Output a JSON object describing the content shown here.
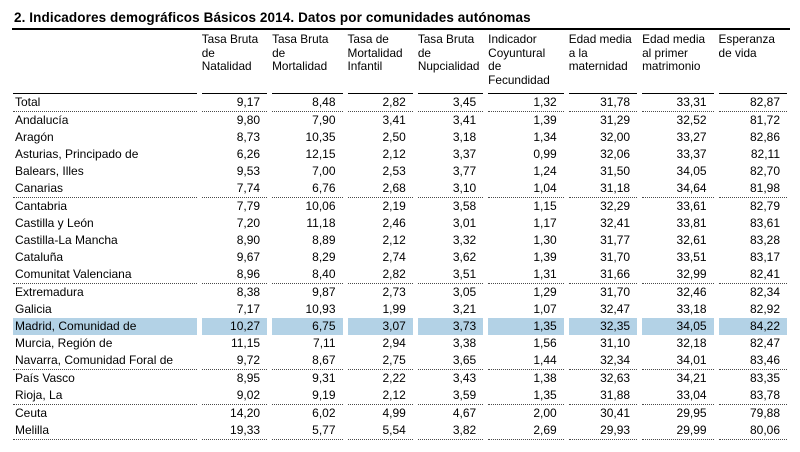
{
  "title": "2. Indicadores demográficos Básicos 2014. Datos por comunidades autónomas",
  "colors": {
    "highlight": "#b3d2e6",
    "text": "#000000",
    "rule": "#000000"
  },
  "table": {
    "row_label_column_header": "",
    "columns": [
      {
        "label": "Tasa Bruta\nde\nNatalidad"
      },
      {
        "label": "Tasa Bruta\nde\nMortalidad"
      },
      {
        "label": "Tasa de\nMortalidad\nInfantil"
      },
      {
        "label": "Tasa Bruta\nde\nNupcialidad"
      },
      {
        "label": "Indicador\nCoyuntural\nde\nFecundidad"
      },
      {
        "label": "Edad media\na la\nmaternidad"
      },
      {
        "label": "Edad media\nal primer\nmatrimonio"
      },
      {
        "label": "Esperanza\nde vida"
      }
    ],
    "rows": [
      {
        "name": "Total",
        "values": [
          "9,17",
          "8,48",
          "2,82",
          "3,45",
          "1,32",
          "31,78",
          "33,31",
          "82,87"
        ],
        "separator": true,
        "highlight": false
      },
      {
        "name": "Andalucía",
        "values": [
          "9,80",
          "7,90",
          "3,41",
          "3,41",
          "1,39",
          "31,29",
          "32,52",
          "81,72"
        ],
        "separator": false,
        "highlight": false
      },
      {
        "name": "Aragón",
        "values": [
          "8,73",
          "10,35",
          "2,50",
          "3,18",
          "1,34",
          "32,00",
          "33,27",
          "82,86"
        ],
        "separator": false,
        "highlight": false
      },
      {
        "name": "Asturias, Principado de",
        "values": [
          "6,26",
          "12,15",
          "2,12",
          "3,37",
          "0,99",
          "32,06",
          "33,37",
          "82,11"
        ],
        "separator": false,
        "highlight": false
      },
      {
        "name": "Balears, Illes",
        "values": [
          "9,53",
          "7,00",
          "2,53",
          "3,77",
          "1,24",
          "31,50",
          "34,05",
          "82,70"
        ],
        "separator": false,
        "highlight": false
      },
      {
        "name": "Canarias",
        "values": [
          "7,74",
          "6,76",
          "2,68",
          "3,10",
          "1,04",
          "31,18",
          "34,64",
          "81,98"
        ],
        "separator": true,
        "highlight": false
      },
      {
        "name": "Cantabria",
        "values": [
          "7,79",
          "10,06",
          "2,19",
          "3,58",
          "1,15",
          "32,29",
          "33,61",
          "82,79"
        ],
        "separator": false,
        "highlight": false
      },
      {
        "name": "Castilla y León",
        "values": [
          "7,20",
          "11,18",
          "2,46",
          "3,01",
          "1,17",
          "32,41",
          "33,81",
          "83,61"
        ],
        "separator": false,
        "highlight": false
      },
      {
        "name": "Castilla-La Mancha",
        "values": [
          "8,90",
          "8,89",
          "2,12",
          "3,32",
          "1,30",
          "31,77",
          "32,61",
          "83,28"
        ],
        "separator": false,
        "highlight": false
      },
      {
        "name": "Cataluña",
        "values": [
          "9,67",
          "8,29",
          "2,74",
          "3,62",
          "1,39",
          "31,70",
          "33,51",
          "83,17"
        ],
        "separator": false,
        "highlight": false
      },
      {
        "name": "Comunitat Valenciana",
        "values": [
          "8,96",
          "8,40",
          "2,82",
          "3,51",
          "1,31",
          "31,66",
          "32,99",
          "82,41"
        ],
        "separator": true,
        "highlight": false
      },
      {
        "name": "Extremadura",
        "values": [
          "8,38",
          "9,87",
          "2,73",
          "3,05",
          "1,29",
          "31,70",
          "32,46",
          "82,34"
        ],
        "separator": false,
        "highlight": false
      },
      {
        "name": "Galicia",
        "values": [
          "7,17",
          "10,93",
          "1,99",
          "3,21",
          "1,07",
          "32,47",
          "33,18",
          "82,92"
        ],
        "separator": false,
        "highlight": false
      },
      {
        "name": "Madrid, Comunidad de",
        "values": [
          "10,27",
          "6,75",
          "3,07",
          "3,73",
          "1,35",
          "32,35",
          "34,05",
          "84,22"
        ],
        "separator": false,
        "highlight": true
      },
      {
        "name": "Murcia, Región de",
        "values": [
          "11,15",
          "7,11",
          "2,94",
          "3,38",
          "1,56",
          "31,10",
          "32,18",
          "82,47"
        ],
        "separator": false,
        "highlight": false
      },
      {
        "name": "Navarra, Comunidad Foral de",
        "values": [
          "9,72",
          "8,67",
          "2,75",
          "3,65",
          "1,44",
          "32,34",
          "34,01",
          "83,46"
        ],
        "separator": true,
        "highlight": false
      },
      {
        "name": "País Vasco",
        "values": [
          "8,95",
          "9,31",
          "2,22",
          "3,43",
          "1,38",
          "32,63",
          "34,21",
          "83,35"
        ],
        "separator": false,
        "highlight": false
      },
      {
        "name": "Rioja, La",
        "values": [
          "9,02",
          "9,19",
          "2,12",
          "3,59",
          "1,35",
          "31,88",
          "33,04",
          "83,78"
        ],
        "separator": true,
        "highlight": false
      },
      {
        "name": "Ceuta",
        "values": [
          "14,20",
          "6,02",
          "4,99",
          "4,67",
          "2,00",
          "30,41",
          "29,95",
          "79,88"
        ],
        "separator": false,
        "highlight": false
      },
      {
        "name": "Melilla",
        "values": [
          "19,33",
          "5,77",
          "5,54",
          "3,82",
          "2,69",
          "29,93",
          "29,99",
          "80,06"
        ],
        "separator": true,
        "highlight": false
      }
    ]
  }
}
